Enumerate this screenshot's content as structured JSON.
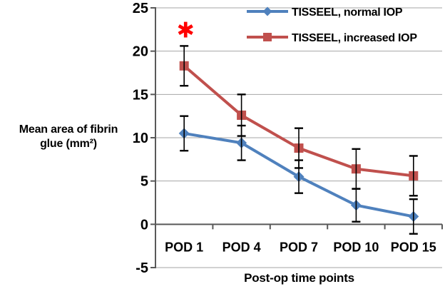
{
  "chart_data": {
    "type": "line",
    "title": "",
    "x_title": "Post-op time points",
    "y_title": "Mean area of fibrin glue (mm²)",
    "y_title_lines": [
      "Mean area of fibrin",
      "glue (mm²)"
    ],
    "categories": [
      "POD 1",
      "POD 4",
      "POD 7",
      "POD 10",
      "POD 15"
    ],
    "ylim": [
      -5,
      25
    ],
    "ytick_step": 5,
    "yticks": [
      25,
      20,
      15,
      10,
      5,
      0,
      -5
    ],
    "grid": true,
    "legend_position": "top-right",
    "series": [
      {
        "name": "TISSEEL, normal IOP",
        "color": "#4F81BD",
        "marker": "diamond",
        "values": [
          10.5,
          9.4,
          5.5,
          2.2,
          0.9
        ],
        "error": [
          2.0,
          2.0,
          1.9,
          1.9,
          2.0
        ]
      },
      {
        "name": "TISSEEL, increased IOP",
        "color": "#C0504D",
        "marker": "square",
        "values": [
          18.3,
          12.6,
          8.8,
          6.4,
          5.6
        ],
        "error": [
          2.3,
          2.4,
          2.3,
          2.3,
          2.3
        ]
      }
    ],
    "annotations": [
      {
        "text": "✱",
        "x_category": "POD 1",
        "y": 22.4,
        "color": "#FF0000",
        "meaning": "statistically-significant-marker"
      }
    ]
  },
  "colors": {
    "background": "#FFFFFF",
    "gridline": "#A6A6A6",
    "axis": "#595959",
    "error_bar": "#000000",
    "text": "#000000"
  }
}
